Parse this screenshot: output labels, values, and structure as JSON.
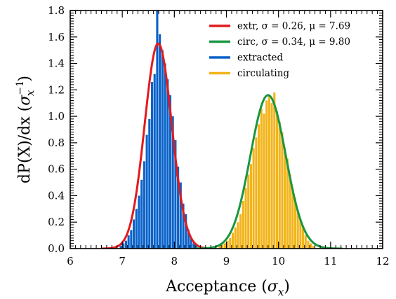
{
  "chart_data": {
    "type": "histogram",
    "xlabel": {
      "text": "Acceptance (",
      "symbol": "σ",
      "sub": "x",
      "close": ")"
    },
    "ylabel": {
      "text": "dP(X)/dx (",
      "symbol": "σ",
      "sub": "x",
      "sup": "−1",
      "close": ")"
    },
    "xlim": [
      6,
      12
    ],
    "ylim": [
      0,
      1.8
    ],
    "x_ticks": [
      "6",
      "7",
      "8",
      "9",
      "10",
      "11",
      "12"
    ],
    "y_ticks": [
      "0.0",
      "0.2",
      "0.4",
      "0.6",
      "0.8",
      "1.0",
      "1.2",
      "1.4",
      "1.6",
      "1.8"
    ],
    "legend": {
      "placement": "top-right",
      "entries": [
        {
          "text": "extr, σ = 0.26, μ = 7.69",
          "color": "#e31a1c"
        },
        {
          "text": "circ, σ = 0.34, μ = 9.80",
          "color": "#1a9641"
        },
        {
          "text": "extracted",
          "color": "#0a62c9"
        },
        {
          "text": "circulating",
          "color": "#f2b419"
        }
      ]
    },
    "series": [
      {
        "name": "extracted",
        "kind": "histogram",
        "color": "#0a62c9",
        "bin_width": 0.05,
        "bins": [
          [
            6.95,
            0.02
          ],
          [
            7.0,
            0.04
          ],
          [
            7.05,
            0.06
          ],
          [
            7.1,
            0.1
          ],
          [
            7.15,
            0.14
          ],
          [
            7.2,
            0.22
          ],
          [
            7.25,
            0.3
          ],
          [
            7.3,
            0.4
          ],
          [
            7.35,
            0.52
          ],
          [
            7.4,
            0.66
          ],
          [
            7.45,
            0.86
          ],
          [
            7.5,
            0.98
          ],
          [
            7.55,
            1.26
          ],
          [
            7.6,
            1.32
          ],
          [
            7.65,
            1.8
          ],
          [
            7.7,
            1.62
          ],
          [
            7.75,
            1.5
          ],
          [
            7.8,
            1.4
          ],
          [
            7.85,
            1.28
          ],
          [
            7.9,
            1.16
          ],
          [
            7.95,
            1.0
          ],
          [
            8.0,
            0.82
          ],
          [
            8.05,
            0.62
          ],
          [
            8.1,
            0.5
          ],
          [
            8.15,
            0.34
          ],
          [
            8.2,
            0.26
          ],
          [
            8.25,
            0.14
          ],
          [
            8.3,
            0.08
          ],
          [
            8.35,
            0.04
          ],
          [
            8.4,
            0.02
          ]
        ]
      },
      {
        "name": "circulating",
        "kind": "histogram",
        "color": "#f2b419",
        "bin_width": 0.05,
        "bins": [
          [
            8.85,
            0.02
          ],
          [
            8.9,
            0.03
          ],
          [
            8.95,
            0.04
          ],
          [
            9.0,
            0.06
          ],
          [
            9.05,
            0.08
          ],
          [
            9.1,
            0.12
          ],
          [
            9.15,
            0.16
          ],
          [
            9.2,
            0.2
          ],
          [
            9.25,
            0.26
          ],
          [
            9.3,
            0.36
          ],
          [
            9.35,
            0.46
          ],
          [
            9.4,
            0.56
          ],
          [
            9.45,
            0.64
          ],
          [
            9.5,
            0.76
          ],
          [
            9.55,
            0.84
          ],
          [
            9.6,
            0.94
          ],
          [
            9.65,
            1.06
          ],
          [
            9.7,
            1.02
          ],
          [
            9.75,
            1.12
          ],
          [
            9.8,
            1.16
          ],
          [
            9.85,
            1.1
          ],
          [
            9.9,
            1.18
          ],
          [
            9.95,
            1.04
          ],
          [
            10.0,
            0.96
          ],
          [
            10.05,
            0.88
          ],
          [
            10.1,
            0.76
          ],
          [
            10.15,
            0.68
          ],
          [
            10.2,
            0.56
          ],
          [
            10.25,
            0.46
          ],
          [
            10.3,
            0.38
          ],
          [
            10.35,
            0.28
          ],
          [
            10.4,
            0.22
          ],
          [
            10.45,
            0.16
          ],
          [
            10.5,
            0.1
          ],
          [
            10.55,
            0.06
          ],
          [
            10.6,
            0.04
          ],
          [
            10.65,
            0.02
          ]
        ]
      },
      {
        "name": "extr",
        "kind": "gaussian",
        "color": "#e31a1c",
        "mu": 7.69,
        "sigma": 0.26,
        "amplitude": 1.55
      },
      {
        "name": "circ",
        "kind": "gaussian",
        "color": "#1a9641",
        "mu": 9.8,
        "sigma": 0.34,
        "amplitude": 1.16
      }
    ],
    "grid": false
  }
}
